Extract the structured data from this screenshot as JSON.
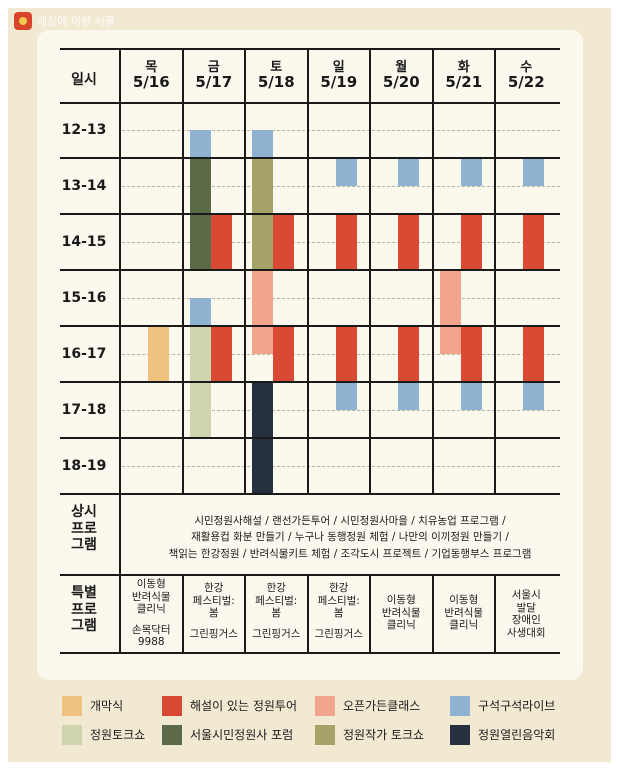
{
  "logo": {
    "text": "세상에 이런 서울"
  },
  "header": {
    "label": "일시"
  },
  "days": [
    {
      "day": "목",
      "date": "5/16"
    },
    {
      "day": "금",
      "date": "5/17"
    },
    {
      "day": "토",
      "date": "5/18"
    },
    {
      "day": "일",
      "date": "5/19"
    },
    {
      "day": "월",
      "date": "5/20"
    },
    {
      "day": "화",
      "date": "5/21"
    },
    {
      "day": "수",
      "date": "5/22"
    }
  ],
  "time_slots": [
    "12-13",
    "13-14",
    "14-15",
    "15-16",
    "16-17",
    "17-18",
    "18-19"
  ],
  "permanent": {
    "label_lines": [
      "상시",
      "프로",
      "그램"
    ],
    "lines": [
      "시민정원사해설 / 랜선가든투어 / 시민정원사마을 / 치유농업 프로그램 /",
      "재활용컵 화분 만들기 / 누구나 동행정원 체험 / 나만의 이끼정원 만들기 /",
      "책읽는 한강정원 / 반려식물키트 체험 / 조각도시 프로젝트 / 기업동행부스 프로그램"
    ]
  },
  "special": {
    "label_lines": [
      "특별",
      "프로",
      "그램"
    ],
    "cells": [
      [
        "이동형",
        "반려식물",
        "클리닉",
        "",
        "손목닥터",
        "9988"
      ],
      [
        "한강",
        "페스티벌:",
        "봄",
        "",
        "그린핑거스"
      ],
      [
        "한강",
        "페스티벌:",
        "봄",
        "",
        "그린핑거스"
      ],
      [
        "한강",
        "페스티벌:",
        "봄",
        "",
        "그린핑거스"
      ],
      [
        "이동형",
        "반려식물",
        "클리닉"
      ],
      [
        "이동형",
        "반려식물",
        "클리닉"
      ],
      [
        "서울시",
        "발달",
        "장애인",
        "사생대회"
      ]
    ]
  },
  "legend": [
    {
      "key": "opening",
      "label": "개막식",
      "color": "#f0c27f"
    },
    {
      "key": "tour",
      "label": "해설이 있는 정원투어",
      "color": "#d94a35"
    },
    {
      "key": "open_garden",
      "label": "오픈가든클래스",
      "color": "#f2a58c"
    },
    {
      "key": "busking",
      "label": "구석구석라이브",
      "color": "#8eb2d0"
    },
    {
      "key": "garden_talk",
      "label": "정원토크쇼",
      "color": "#cfd3ae"
    },
    {
      "key": "forum",
      "label": "서울시민정원사 포럼",
      "color": "#5b6b47"
    },
    {
      "key": "artist_talk",
      "label": "정원작가 토크쇼",
      "color": "#a4a267"
    },
    {
      "key": "concert",
      "label": "정원열린음악회",
      "color": "#26303e"
    }
  ],
  "schedule": [
    {
      "day": 0,
      "lane": 1,
      "start": 16,
      "end": 17,
      "type": "opening"
    },
    {
      "day": 1,
      "lane": 0,
      "start": 12.5,
      "end": 13,
      "type": "busking"
    },
    {
      "day": 1,
      "lane": 0,
      "start": 13,
      "end": 15,
      "type": "forum"
    },
    {
      "day": 1,
      "lane": 1,
      "start": 14,
      "end": 15,
      "type": "tour"
    },
    {
      "day": 1,
      "lane": 0,
      "start": 15.5,
      "end": 16,
      "type": "busking"
    },
    {
      "day": 1,
      "lane": 0,
      "start": 16,
      "end": 18,
      "type": "garden_talk"
    },
    {
      "day": 1,
      "lane": 1,
      "start": 16,
      "end": 17,
      "type": "tour"
    },
    {
      "day": 2,
      "lane": 0,
      "start": 12.5,
      "end": 13,
      "type": "busking"
    },
    {
      "day": 2,
      "lane": 0,
      "start": 13,
      "end": 15,
      "type": "artist_talk"
    },
    {
      "day": 2,
      "lane": 1,
      "start": 14,
      "end": 15,
      "type": "tour"
    },
    {
      "day": 2,
      "lane": 0,
      "start": 15,
      "end": 16.5,
      "type": "open_garden"
    },
    {
      "day": 2,
      "lane": 1,
      "start": 16,
      "end": 17,
      "type": "tour"
    },
    {
      "day": 2,
      "lane": 0,
      "start": 17,
      "end": 19,
      "type": "concert"
    },
    {
      "day": 3,
      "lane": 1,
      "start": 13,
      "end": 13.5,
      "type": "busking"
    },
    {
      "day": 3,
      "lane": 1,
      "start": 14,
      "end": 15,
      "type": "tour"
    },
    {
      "day": 3,
      "lane": 1,
      "start": 16,
      "end": 17,
      "type": "tour"
    },
    {
      "day": 3,
      "lane": 1,
      "start": 17,
      "end": 17.5,
      "type": "busking"
    },
    {
      "day": 4,
      "lane": 1,
      "start": 13,
      "end": 13.5,
      "type": "busking"
    },
    {
      "day": 4,
      "lane": 1,
      "start": 14,
      "end": 15,
      "type": "tour"
    },
    {
      "day": 4,
      "lane": 1,
      "start": 16,
      "end": 17,
      "type": "tour"
    },
    {
      "day": 4,
      "lane": 1,
      "start": 17,
      "end": 17.5,
      "type": "busking"
    },
    {
      "day": 5,
      "lane": 1,
      "start": 13,
      "end": 13.5,
      "type": "busking"
    },
    {
      "day": 5,
      "lane": 1,
      "start": 14,
      "end": 15,
      "type": "tour"
    },
    {
      "day": 5,
      "lane": 0,
      "start": 15,
      "end": 16.5,
      "type": "open_garden"
    },
    {
      "day": 5,
      "lane": 1,
      "start": 16,
      "end": 17,
      "type": "tour"
    },
    {
      "day": 5,
      "lane": 1,
      "start": 17,
      "end": 17.5,
      "type": "busking"
    },
    {
      "day": 6,
      "lane": 1,
      "start": 13,
      "end": 13.5,
      "type": "busking"
    },
    {
      "day": 6,
      "lane": 1,
      "start": 14,
      "end": 15,
      "type": "tour"
    },
    {
      "day": 6,
      "lane": 1,
      "start": 16,
      "end": 17,
      "type": "tour"
    },
    {
      "day": 6,
      "lane": 1,
      "start": 17,
      "end": 17.5,
      "type": "busking"
    }
  ]
}
